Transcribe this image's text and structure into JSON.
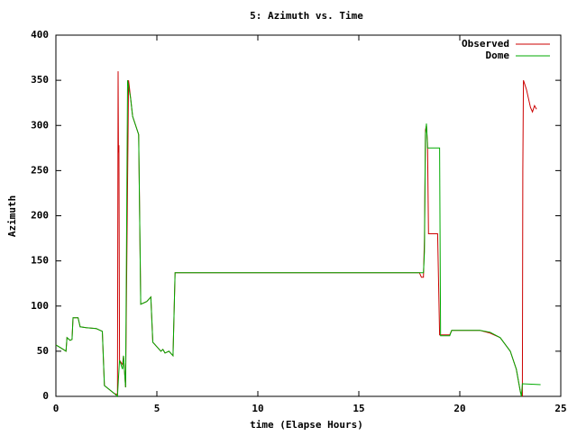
{
  "chart_data": {
    "type": "line",
    "title": "5: Azimuth vs. Time",
    "x_label": "time (Elapse Hours)",
    "y_label": "Azimuth",
    "xlim": [
      0,
      25
    ],
    "xticks": [
      0,
      5,
      10,
      15,
      20,
      25
    ],
    "ylim": [
      0,
      400
    ],
    "yticks": [
      0,
      50,
      100,
      150,
      200,
      250,
      300,
      350,
      400
    ],
    "legend": "top-right",
    "series": [
      {
        "name": "Observed",
        "color": "#cc0000",
        "x": [
          0,
          0.3,
          0.5,
          0.55,
          0.7,
          0.8,
          0.85,
          1.1,
          1.2,
          1.5,
          2.0,
          2.3,
          2.4,
          2.9,
          3.05,
          3.08,
          3.1,
          3.12,
          3.15,
          3.3,
          3.35,
          3.45,
          3.6,
          3.7,
          3.8,
          4.1,
          4.2,
          4.5,
          4.7,
          4.8,
          5.0,
          5.2,
          5.3,
          5.4,
          5.6,
          5.8,
          5.9,
          18,
          18.1,
          18.2,
          18.25,
          18.3,
          18.35,
          18.4,
          18.45,
          18.9,
          19.0,
          19.5,
          19.6,
          21,
          21.5,
          22,
          22.5,
          22.8,
          23.0,
          23.1,
          23.12,
          23.15,
          23.3,
          23.5,
          23.6,
          23.7,
          23.8
        ],
        "values": [
          57,
          53,
          50,
          65,
          62,
          63,
          87,
          87,
          77,
          76,
          75,
          72,
          12,
          3,
          2,
          360,
          270,
          278,
          40,
          35,
          45,
          10,
          350,
          330,
          310,
          290,
          102,
          105,
          110,
          60,
          55,
          50,
          52,
          48,
          50,
          45,
          137,
          137,
          132,
          132,
          175,
          295,
          300,
          280,
          180,
          180,
          68,
          68,
          73,
          73,
          70,
          65,
          50,
          30,
          5,
          0,
          250,
          350,
          340,
          320,
          315,
          322,
          318
        ]
      },
      {
        "name": "Dome",
        "color": "#00aa00",
        "x": [
          0,
          0.3,
          0.5,
          0.55,
          0.7,
          0.8,
          0.85,
          1.1,
          1.2,
          1.5,
          2.0,
          2.3,
          2.4,
          2.9,
          3.05,
          3.1,
          3.15,
          3.3,
          3.35,
          3.45,
          3.55,
          3.7,
          3.8,
          4.1,
          4.2,
          4.5,
          4.7,
          4.8,
          5.0,
          5.2,
          5.3,
          5.4,
          5.6,
          5.8,
          5.9,
          18.2,
          18.25,
          18.3,
          18.35,
          18.4,
          19.0,
          19.05,
          19.5,
          19.6,
          21,
          21.5,
          22,
          22.5,
          22.8,
          23.0,
          23.05,
          23.1,
          24
        ],
        "values": [
          57,
          53,
          50,
          65,
          62,
          63,
          87,
          87,
          77,
          76,
          75,
          72,
          12,
          3,
          0,
          20,
          40,
          30,
          45,
          10,
          350,
          330,
          310,
          290,
          102,
          105,
          110,
          60,
          55,
          50,
          52,
          48,
          50,
          45,
          137,
          137,
          160,
          290,
          302,
          275,
          275,
          67,
          67,
          73,
          73,
          71,
          65,
          50,
          30,
          5,
          0,
          14,
          13
        ]
      }
    ]
  }
}
